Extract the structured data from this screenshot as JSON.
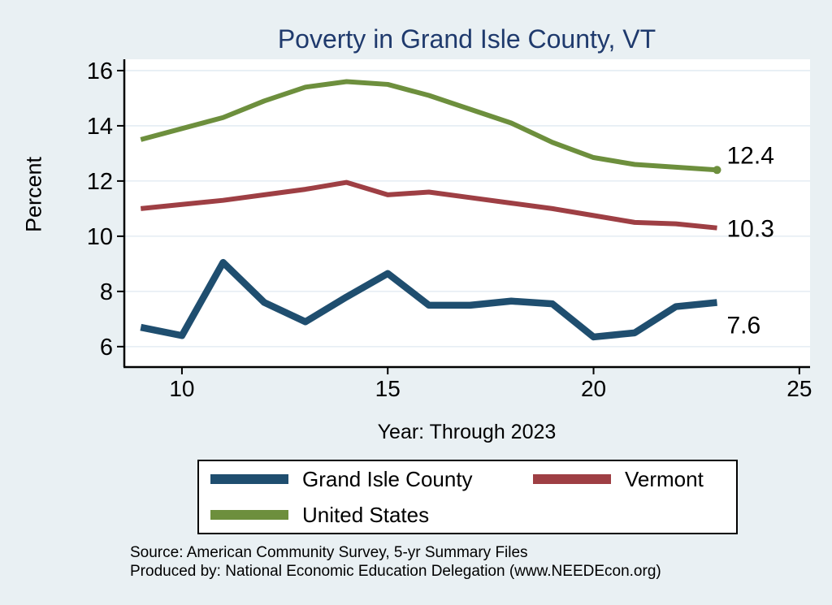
{
  "title": "Poverty in Grand Isle County, VT",
  "chart_data": {
    "type": "line",
    "title": "Poverty in Grand Isle County, VT",
    "xlabel": "Year: Through 2023",
    "ylabel": "Percent",
    "x": [
      9,
      10,
      11,
      12,
      13,
      14,
      15,
      16,
      17,
      18,
      19,
      20,
      21,
      22,
      23
    ],
    "xticks": [
      10,
      15,
      20,
      25
    ],
    "yticks": [
      6,
      8,
      10,
      12,
      14,
      16
    ],
    "xlim": [
      8.6,
      25.26
    ],
    "ylim": [
      5.26,
      16.41
    ],
    "grid": "horizontal",
    "legend_position": "below",
    "series": [
      {
        "name": "Grand Isle County",
        "color": "#1f4e6f",
        "stroke_width": 8.5,
        "values": [
          6.7,
          6.4,
          9.05,
          7.6,
          6.9,
          7.8,
          8.65,
          7.5,
          7.5,
          7.65,
          7.55,
          6.35,
          6.5,
          7.45,
          7.6
        ],
        "end_label": "7.6",
        "end_label_dy": 38,
        "end_dot": false
      },
      {
        "name": "Vermont",
        "color": "#9e3f44",
        "stroke_width": 6,
        "values": [
          11.0,
          11.15,
          11.3,
          11.5,
          11.7,
          11.95,
          11.5,
          11.6,
          11.4,
          11.2,
          11.0,
          10.75,
          10.5,
          10.45,
          10.3
        ],
        "end_label": "10.3",
        "end_label_dy": 11,
        "end_dot": false
      },
      {
        "name": "United States",
        "color": "#6d8f3d",
        "stroke_width": 6,
        "values": [
          13.5,
          13.9,
          14.3,
          14.9,
          15.4,
          15.6,
          15.5,
          15.1,
          14.6,
          14.1,
          13.4,
          12.85,
          12.6,
          12.5,
          12.4
        ],
        "end_label": "12.4",
        "end_label_dy": -8,
        "end_dot": true
      }
    ]
  },
  "axes": {
    "x_title": "Year: Through 2023",
    "y_title": "Percent"
  },
  "legend": {
    "items": [
      {
        "label": "Grand Isle County",
        "series": 0
      },
      {
        "label": "Vermont",
        "series": 1
      },
      {
        "label": "United States",
        "series": 2
      }
    ]
  },
  "footer": {
    "source_line": "Source: American Community Survey, 5-yr Summary Files",
    "produced_line": "Produced by: National Economic Education Delegation (www.NEEDEcon.org)"
  },
  "colors": {
    "background": "#e9f0f3",
    "plot_background": "#ffffff",
    "gridline": "#dfe9f0",
    "axis": "#000000",
    "title": "#1f3a6d",
    "text": "#000000"
  }
}
